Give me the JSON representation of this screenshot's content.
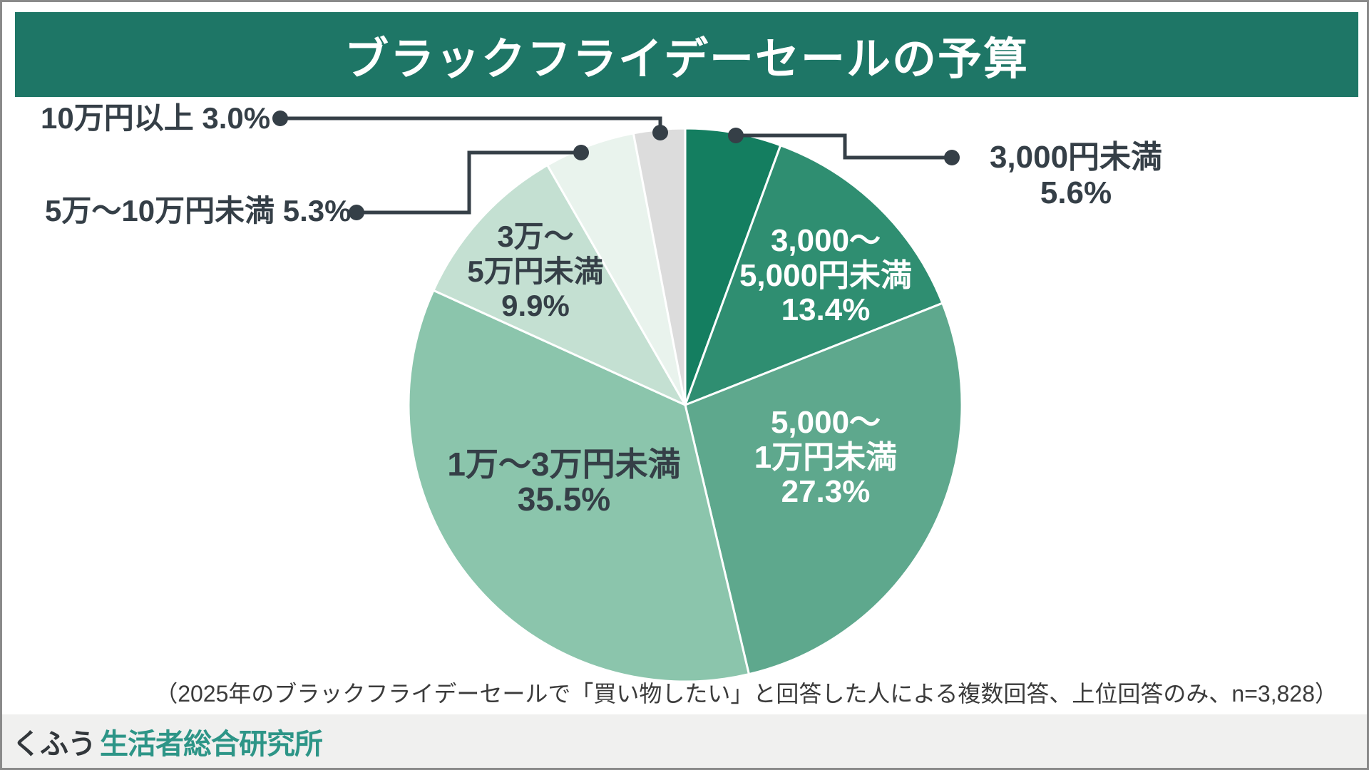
{
  "header": {
    "title": "ブラックフライデーセールの予算",
    "bg_color": "#1E7666",
    "text_color": "#FFFFFF"
  },
  "chart_data": {
    "type": "pie",
    "title": "ブラックフライデーセールの予算",
    "unit": "%",
    "start_angle_deg": 0,
    "direction": "clockwise",
    "legend_position": "none",
    "slices": [
      {
        "label": "3,000円未満",
        "value": 5.6,
        "color": "#147E60",
        "label_style": "outside-right",
        "label_lines": [
          "3,000円未満",
          "5.6%"
        ]
      },
      {
        "label": "3,000〜5,000円未満",
        "value": 13.4,
        "color": "#2F8E71",
        "label_style": "inside-white",
        "label_lines": [
          "3,000〜",
          "5,000円未満",
          "13.4%"
        ]
      },
      {
        "label": "5,000〜1万円未満",
        "value": 27.3,
        "color": "#5EA88D",
        "label_style": "inside-white",
        "label_lines": [
          "5,000〜",
          "1万円未満",
          "27.3%"
        ]
      },
      {
        "label": "1万〜3万円未満",
        "value": 35.5,
        "color": "#8BC5AC",
        "label_style": "inside-dark",
        "label_lines": [
          "1万〜3万円未満",
          "35.5%"
        ]
      },
      {
        "label": "3万〜5万円未満",
        "value": 9.9,
        "color": "#C4E0D2",
        "label_style": "inside-dark",
        "label_lines": [
          "3万〜",
          "5万円未満",
          "9.9%"
        ]
      },
      {
        "label": "5万〜10万円未満",
        "value": 5.3,
        "color": "#E9F3ED",
        "label_style": "outside-left",
        "label_lines": [
          "5万〜10万円未満 5.3%"
        ]
      },
      {
        "label": "10万円以上",
        "value": 3.0,
        "color": "#DCDCDC",
        "label_style": "outside-left",
        "label_lines": [
          "10万円以上 3.0%"
        ]
      }
    ],
    "separator_color": "#FFFFFF",
    "leader_color": "#353F47"
  },
  "caption": {
    "text": "（2025年のブラックフライデーセールで「買い物したい」と回答した人による複数回答、上位回答のみ、n=3,828）"
  },
  "footer": {
    "brand_part1": "くふう",
    "brand_part2": "生活者総合研究所",
    "bar_color": "#F0F0EF",
    "brand1_color": "#32373B",
    "brand2_color": "#2D9587"
  }
}
